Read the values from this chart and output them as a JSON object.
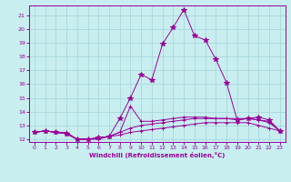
{
  "background_color": "#c8eef0",
  "grid_color": "#a8d8dc",
  "line_color": "#990099",
  "xlabel": "Windchill (Refroidissement éolien,°C)",
  "xlim": [
    -0.5,
    23.5
  ],
  "ylim": [
    11.8,
    21.7
  ],
  "yticks": [
    12,
    13,
    14,
    15,
    16,
    17,
    18,
    19,
    20,
    21
  ],
  "xticks": [
    0,
    1,
    2,
    3,
    4,
    5,
    6,
    7,
    8,
    9,
    10,
    11,
    12,
    13,
    14,
    15,
    16,
    17,
    18,
    19,
    20,
    21,
    22,
    23
  ],
  "curves": [
    {
      "x": [
        0,
        1,
        2,
        3,
        4,
        5,
        6,
        7,
        8,
        9,
        10,
        11,
        12,
        13,
        14,
        15,
        16,
        17,
        18,
        19,
        20,
        21,
        22,
        23
      ],
      "y": [
        12.5,
        12.6,
        12.5,
        12.5,
        12.0,
        12.0,
        12.0,
        12.2,
        12.3,
        12.5,
        12.6,
        12.7,
        12.8,
        12.9,
        13.0,
        13.1,
        13.2,
        13.2,
        13.2,
        13.2,
        13.2,
        13.0,
        12.8,
        12.6
      ]
    },
    {
      "x": [
        0,
        1,
        2,
        3,
        4,
        5,
        6,
        7,
        8,
        9,
        10,
        11,
        12,
        13,
        14,
        15,
        16,
        17,
        18,
        19,
        20,
        21,
        22,
        23
      ],
      "y": [
        12.5,
        12.6,
        12.5,
        12.4,
        12.0,
        12.0,
        12.1,
        12.2,
        12.5,
        12.8,
        13.0,
        13.1,
        13.2,
        13.3,
        13.4,
        13.5,
        13.5,
        13.5,
        13.5,
        13.4,
        13.5,
        13.4,
        13.2,
        12.6
      ]
    },
    {
      "x": [
        0,
        1,
        2,
        3,
        4,
        5,
        6,
        7,
        8,
        9,
        10,
        11,
        12,
        13,
        14,
        15,
        16,
        17,
        18,
        19,
        20,
        21,
        22,
        23
      ],
      "y": [
        12.5,
        12.6,
        12.5,
        12.4,
        12.0,
        12.0,
        12.1,
        12.2,
        12.5,
        14.4,
        13.3,
        13.3,
        13.4,
        13.5,
        13.6,
        13.6,
        13.6,
        13.5,
        13.5,
        13.5,
        13.5,
        13.4,
        13.3,
        12.6
      ]
    },
    {
      "x": [
        0,
        1,
        2,
        3,
        4,
        5,
        6,
        7,
        8,
        9,
        10,
        11,
        12,
        13,
        14,
        15,
        16,
        17,
        18,
        19,
        20,
        21,
        22,
        23
      ],
      "y": [
        12.5,
        12.6,
        12.5,
        12.4,
        12.0,
        12.0,
        12.1,
        12.2,
        13.5,
        15.0,
        16.7,
        16.3,
        18.9,
        20.1,
        21.4,
        19.5,
        19.2,
        17.8,
        16.1,
        13.4,
        13.5,
        13.6,
        13.4,
        12.6
      ]
    }
  ]
}
